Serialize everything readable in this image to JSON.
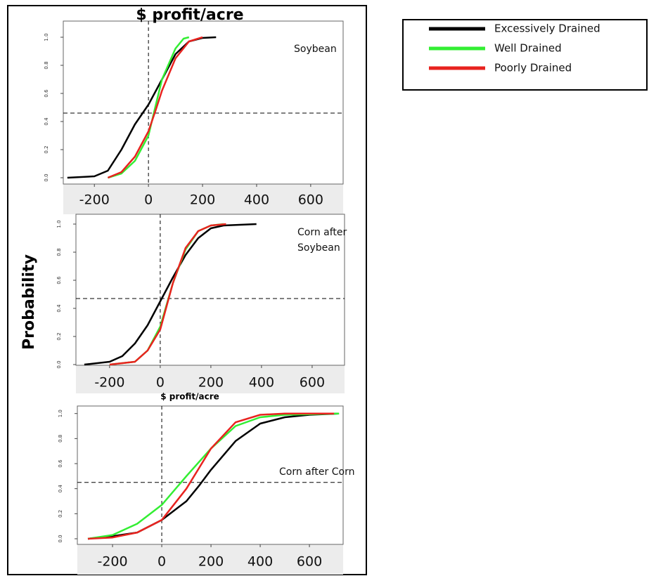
{
  "chart_data": [
    {
      "type": "line",
      "title": "$ profit/acre",
      "annotation": "Soybean",
      "xlim": [
        -315,
        720
      ],
      "ylim": [
        -0.045,
        1.115
      ],
      "xticks": [
        -200,
        0,
        200,
        400,
        600
      ],
      "yticks": [
        {
          "value": 0,
          "label": "0.0"
        },
        0.2,
        0.4,
        0.6,
        0.8,
        {
          "value": 1,
          "label": "1.0"
        }
      ],
      "hline": 0.46,
      "vline": 0,
      "series": [
        {
          "name": "Excessively Drained",
          "color": "#000000",
          "x": [
            -300,
            -200,
            -150,
            -100,
            -50,
            0,
            50,
            100,
            150,
            200,
            250
          ],
          "values": [
            0,
            0.01,
            0.05,
            0.2,
            0.38,
            0.52,
            0.7,
            0.88,
            0.97,
            0.995,
            1
          ]
        },
        {
          "name": "Well Drained",
          "color": "#33ee33",
          "x": [
            -150,
            -100,
            -50,
            0,
            25,
            50,
            100,
            130,
            150
          ],
          "values": [
            0,
            0.03,
            0.12,
            0.3,
            0.5,
            0.7,
            0.92,
            0.99,
            1
          ]
        },
        {
          "name": "Poorly Drained",
          "color": "#e8231f",
          "x": [
            -150,
            -100,
            -50,
            0,
            25,
            50,
            100,
            150,
            200
          ],
          "values": [
            0,
            0.04,
            0.15,
            0.33,
            0.47,
            0.62,
            0.85,
            0.97,
            1
          ]
        }
      ]
    },
    {
      "type": "line",
      "x_label": "$ profit/acre",
      "y_label": "Probability",
      "annotation_lines": [
        "Corn after",
        "Soybean"
      ],
      "xlim": [
        -333,
        728
      ],
      "ylim": [
        -0.005,
        1.07
      ],
      "xticks": [
        -200,
        0,
        200,
        400,
        600
      ],
      "yticks": [
        {
          "value": 0,
          "label": "0.0"
        },
        0.2,
        0.4,
        0.6,
        0.8,
        {
          "value": 1,
          "label": "1.0"
        }
      ],
      "hline": 0.47,
      "vline": 0,
      "series": [
        {
          "name": "Excessively Drained",
          "color": "#000000",
          "x": [
            -300,
            -200,
            -150,
            -100,
            -50,
            0,
            50,
            100,
            150,
            200,
            250,
            380
          ],
          "values": [
            0,
            0.02,
            0.06,
            0.15,
            0.28,
            0.45,
            0.62,
            0.78,
            0.9,
            0.97,
            0.99,
            1
          ]
        },
        {
          "name": "Well Drained",
          "color": "#33ee33",
          "x": [
            -200,
            -100,
            -50,
            0,
            50,
            100,
            150,
            200,
            250
          ],
          "values": [
            0,
            0.02,
            0.1,
            0.27,
            0.58,
            0.82,
            0.95,
            0.99,
            1
          ]
        },
        {
          "name": "Poorly Drained",
          "color": "#e8231f",
          "x": [
            -200,
            -100,
            -50,
            0,
            50,
            100,
            150,
            200,
            260
          ],
          "values": [
            0,
            0.02,
            0.1,
            0.25,
            0.58,
            0.83,
            0.95,
            0.99,
            1
          ]
        }
      ]
    },
    {
      "type": "line",
      "annotation": "Corn after Corn",
      "xlim": [
        -343,
        737
      ],
      "ylim": [
        -0.045,
        1.06
      ],
      "xticks": [
        -200,
        0,
        200,
        400,
        600
      ],
      "yticks": [
        {
          "value": 0,
          "label": "0.0"
        },
        0.2,
        0.4,
        0.6,
        0.8,
        {
          "value": 1,
          "label": "1.0"
        }
      ],
      "hline": 0.45,
      "vline": 0,
      "series": [
        {
          "name": "Excessively Drained",
          "color": "#000000",
          "x": [
            -300,
            -200,
            -100,
            0,
            100,
            150,
            200,
            300,
            400,
            500,
            600,
            720
          ],
          "values": [
            0,
            0.02,
            0.05,
            0.15,
            0.3,
            0.42,
            0.55,
            0.78,
            0.92,
            0.97,
            0.99,
            1
          ]
        },
        {
          "name": "Well Drained",
          "color": "#33ee33",
          "x": [
            -300,
            -200,
            -100,
            0,
            100,
            200,
            300,
            400,
            500,
            720
          ],
          "values": [
            0,
            0.03,
            0.12,
            0.27,
            0.5,
            0.72,
            0.9,
            0.97,
            0.99,
            1
          ]
        },
        {
          "name": "Poorly Drained",
          "color": "#e8231f",
          "x": [
            -300,
            -200,
            -100,
            0,
            100,
            200,
            300,
            400,
            500,
            700
          ],
          "values": [
            0,
            0.01,
            0.05,
            0.15,
            0.4,
            0.72,
            0.93,
            0.99,
            1,
            1
          ]
        }
      ]
    }
  ]
}
